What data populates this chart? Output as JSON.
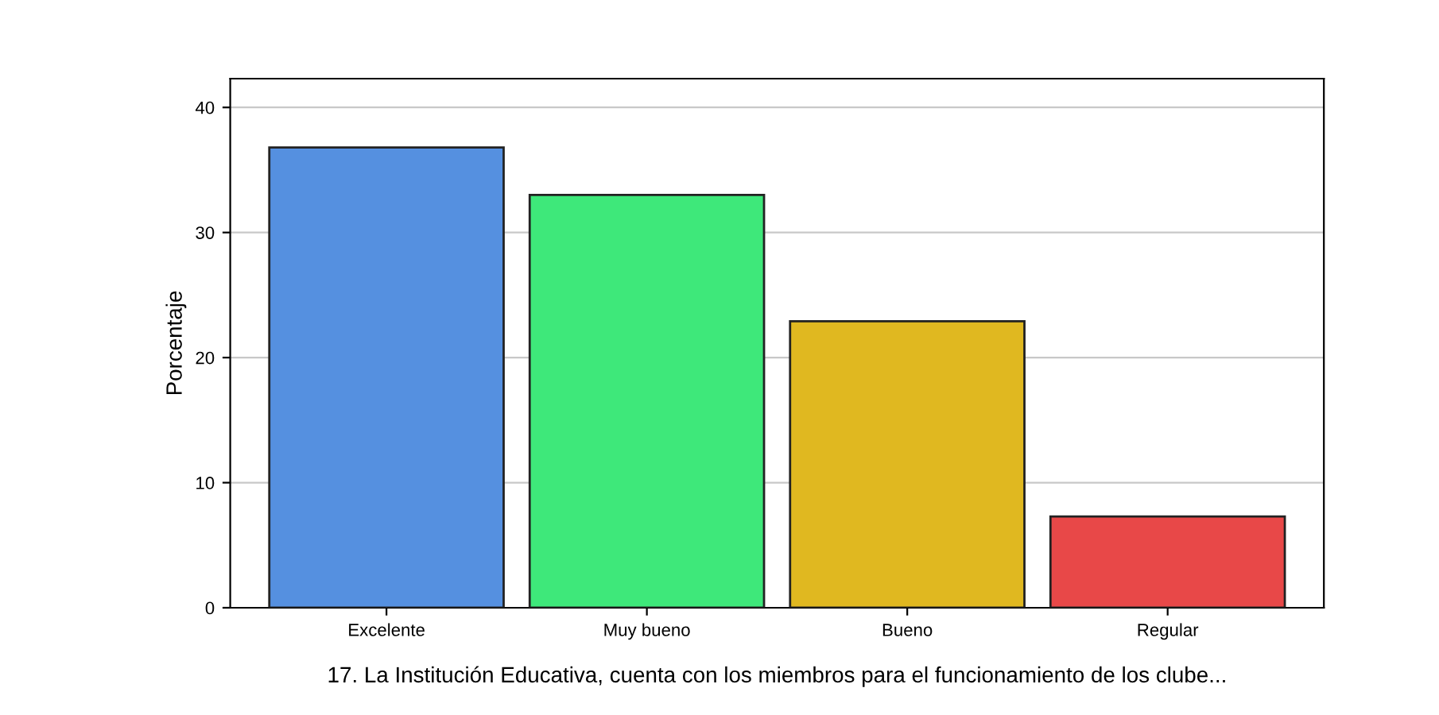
{
  "chart_data": {
    "type": "bar",
    "categories": [
      "Excelente",
      "Muy bueno",
      "Bueno",
      "Regular"
    ],
    "values": [
      36.8,
      33.0,
      22.9,
      7.3
    ],
    "colors": [
      "#5590e0",
      "#3ee87a",
      "#e0b820",
      "#e84848"
    ],
    "xlabel": "17. La Institución Educativa, cuenta con los miembros para el funcionamiento de los clube...",
    "ylabel": "Porcentaje",
    "ylim": [
      0,
      42.3
    ],
    "yticks": [
      0,
      10,
      20,
      30,
      40
    ],
    "grid": "y"
  }
}
